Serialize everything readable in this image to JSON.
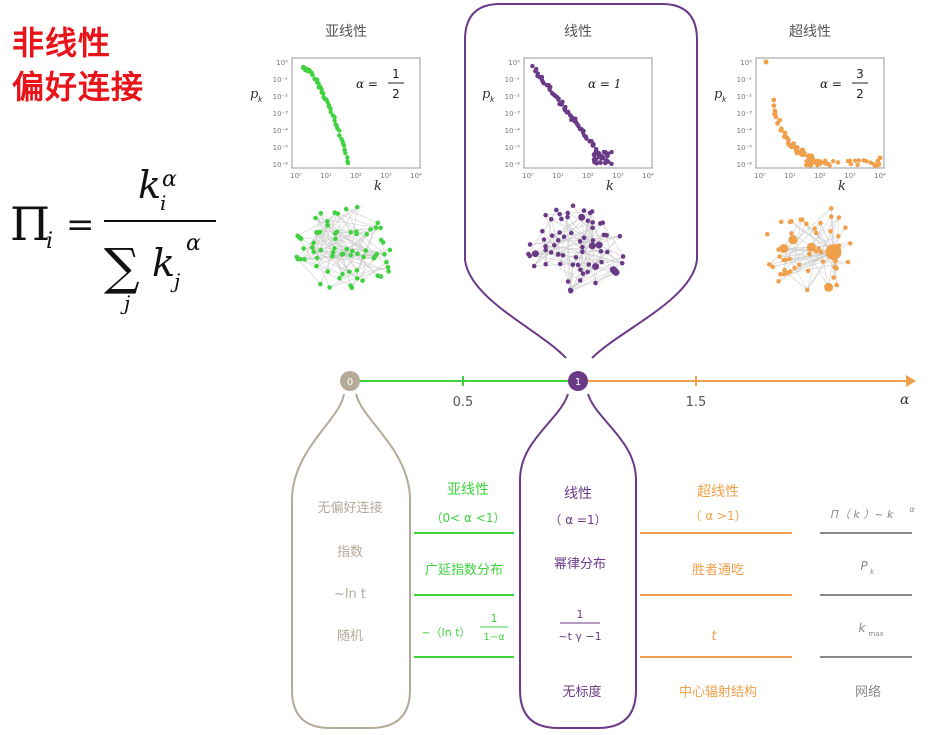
{
  "heading": {
    "line1": "非线性",
    "line2": "偏好连接"
  },
  "formula": {
    "lhs": "Π",
    "lhs_sub": "i",
    "eq": "=",
    "num": "k",
    "num_sub": "i",
    "num_sup": "α",
    "sigma": "∑",
    "sigma_sub": "j",
    "den": "k",
    "den_sub": "j",
    "den_sup": "α"
  },
  "colors": {
    "sub": "#3fd23f",
    "lin": "#6b3a87",
    "sup": "#f0a04b",
    "rand": "#b5aa98",
    "net": "#888888",
    "red": "#e8141a"
  },
  "panels": [
    {
      "title": "亚线性",
      "alpha_label": "α =",
      "alpha_num": "1",
      "alpha_den": "2",
      "color": "#3fd23f"
    },
    {
      "title": "线性",
      "alpha_label": "α = 1",
      "alpha_num": "",
      "alpha_den": "",
      "color": "#6b3a87"
    },
    {
      "title": "超线性",
      "alpha_label": "α =",
      "alpha_num": "3",
      "alpha_den": "2",
      "color": "#f0a04b"
    }
  ],
  "plot_axes": {
    "ylabel": "p",
    "ylabel_sub": "k",
    "xlabel": "k",
    "yticks": [
      "10⁰",
      "10⁻¹",
      "10⁻²",
      "10⁻³",
      "10⁻⁴",
      "10⁻⁵",
      "10⁻⁶"
    ],
    "xticks": [
      "10⁰",
      "10¹",
      "10²",
      "10³",
      "10⁴"
    ]
  },
  "axis": {
    "ticks": [
      {
        "label": "0",
        "circle": true
      },
      {
        "label": "0.5"
      },
      {
        "label": "1",
        "circle": true
      },
      {
        "label": "1.5"
      }
    ],
    "alpha": "α"
  },
  "columns": {
    "random": [
      "无偏好连接",
      "指数",
      "~ln t",
      "随机"
    ],
    "sub": {
      "title": "亚线性",
      "range": "（0< α <1）",
      "dist": "广延指数分布",
      "kmax_pre": "~（ln t）",
      "kmax_num": "1",
      "kmax_den": "1−α"
    },
    "lin": {
      "title": "线性",
      "range": "（ α =1）",
      "dist": "幂律分布",
      "kmax_num": "1",
      "kmax_den": "~t γ −1",
      "struct": "无标度"
    },
    "sup": {
      "title": "超线性",
      "range": "（ α >1）",
      "dist": "胜者通吃",
      "kmax": "t",
      "struct": "中心辐射结构"
    },
    "net": {
      "row1": "Π（ k ）~ k",
      "row1_sup": "α",
      "row2": "P",
      "row2_sub": "k",
      "row3": "k",
      "row3_sub": "max",
      "row4": "网络"
    }
  }
}
